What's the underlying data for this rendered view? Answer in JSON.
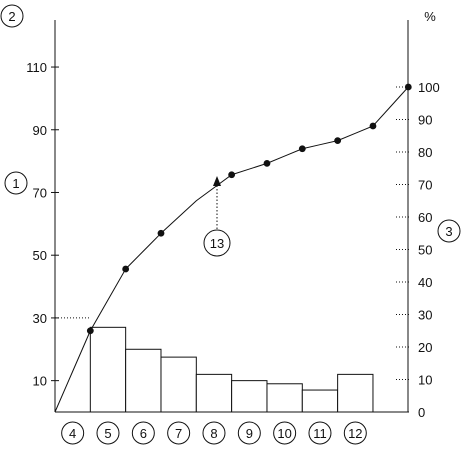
{
  "chart_data": {
    "type": "bar",
    "categories": [
      "4",
      "5",
      "6",
      "7",
      "8",
      "9",
      "10",
      "11",
      "12"
    ],
    "values": [
      0,
      27,
      20,
      17.5,
      12,
      10,
      9,
      7,
      12
    ],
    "cumulative_line": {
      "type": "line",
      "axis": "right",
      "points": [
        {
          "x": 0,
          "y": 0
        },
        {
          "x": 1,
          "y": 25
        },
        {
          "x": 2,
          "y": 44
        },
        {
          "x": 3,
          "y": 55
        },
        {
          "x": 4,
          "y": 65
        },
        {
          "x": 5,
          "y": 73
        },
        {
          "x": 6,
          "y": 76.5
        },
        {
          "x": 7,
          "y": 81
        },
        {
          "x": 8,
          "y": 83.5
        },
        {
          "x": 9,
          "y": 88
        },
        {
          "x": 10,
          "y": 100
        }
      ],
      "marker_points": [
        1,
        2,
        3,
        5,
        6,
        7,
        8,
        9,
        10
      ]
    },
    "left_axis": {
      "ylim": [
        0,
        125
      ],
      "ticks": [
        10,
        30,
        50,
        70,
        90,
        110
      ]
    },
    "right_axis": {
      "unit": "%",
      "ylim": [
        0,
        100
      ],
      "ticks": [
        0,
        10,
        20,
        30,
        40,
        50,
        60,
        70,
        80,
        90,
        100
      ]
    },
    "grid": false,
    "title": "",
    "xlabel": "",
    "ylabel": ""
  },
  "callouts": {
    "left_axis_top": "2",
    "left_axis_mid": "1",
    "right_axis_mid": "3",
    "curve_pointer": "13"
  },
  "colors": {
    "ink": "#111111",
    "background": "#ffffff"
  }
}
